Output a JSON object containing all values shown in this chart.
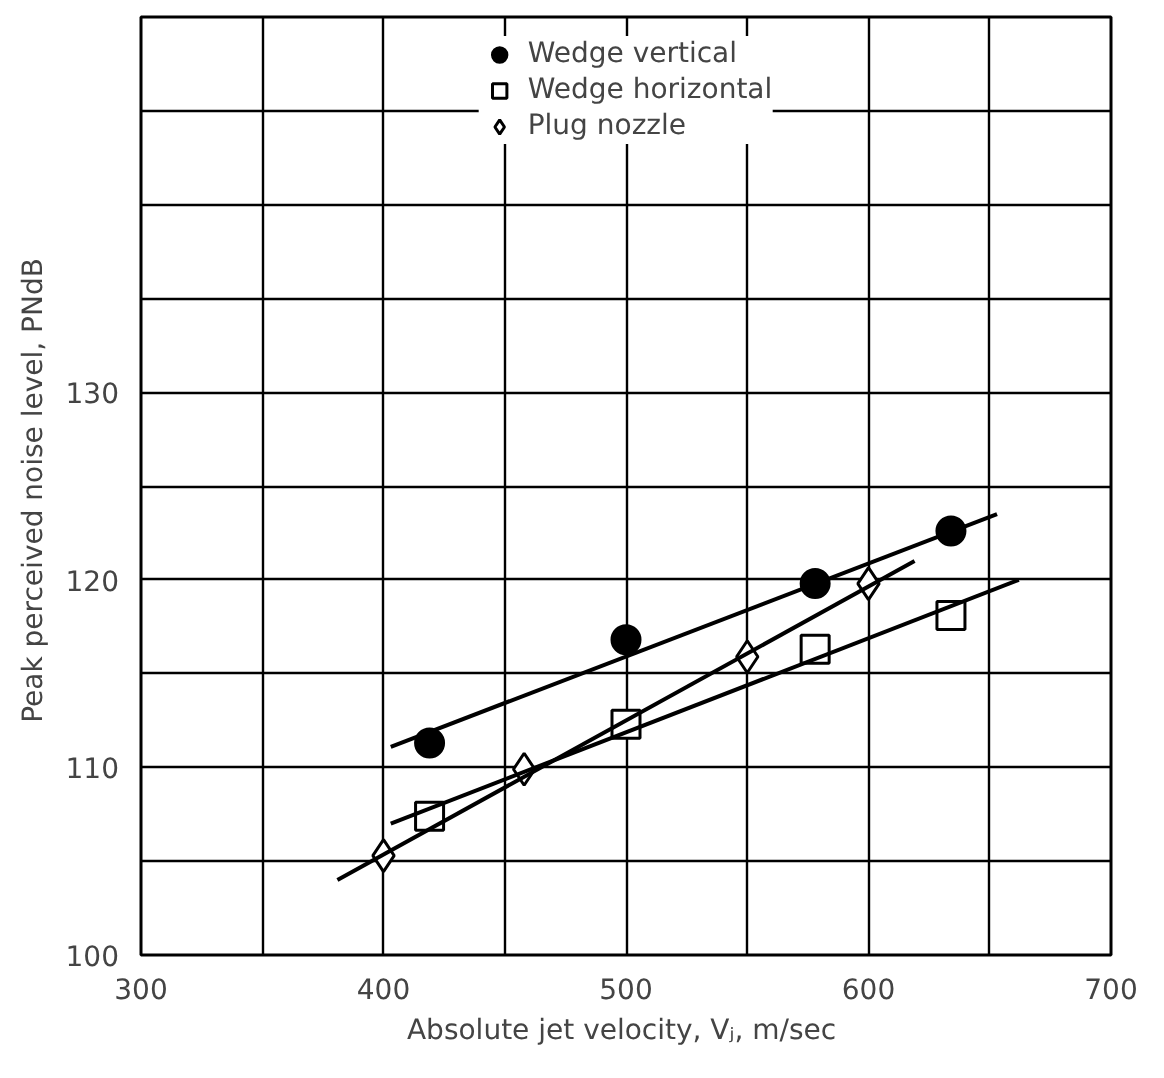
{
  "chart_data": {
    "type": "scatter",
    "xlabel": "Absolute jet velocity, Vⱼ,  m/sec",
    "ylabel": "Peak perceived noise level,  PNdB",
    "xlim": [
      300,
      700
    ],
    "ylim": [
      100,
      150
    ],
    "xticks": [
      300,
      {
        "value": 350,
        "label": null
      },
      400,
      {
        "value": 450,
        "label": null
      },
      500,
      {
        "value": 550,
        "label": null
      },
      600,
      {
        "value": 650,
        "label": null
      },
      700
    ],
    "yticks": [
      100,
      {
        "value": 105,
        "label": null
      },
      110,
      {
        "value": 115,
        "label": null
      },
      120,
      {
        "value": 125,
        "label": null
      },
      130,
      {
        "value": 135,
        "label": null
      },
      {
        "value": 140,
        "label": null
      },
      {
        "value": 145,
        "label": null
      },
      {
        "value": 150,
        "label": null
      }
    ],
    "grid": true,
    "legend": "top",
    "series": [
      {
        "name": "Wedge vertical",
        "color": "#000000",
        "marker": "circle",
        "x": [
          419,
          500,
          578,
          634
        ],
        "values": [
          111.3,
          116.8,
          119.8,
          122.6
        ]
      },
      {
        "name": "Wedge horizontal",
        "color": "#000000",
        "marker": "square",
        "x": [
          419,
          500,
          578,
          634
        ],
        "values": [
          107.4,
          112.3,
          116.3,
          118.1
        ]
      },
      {
        "name": "Plug nozzle",
        "color": "#000000",
        "marker": "diamond",
        "x": [
          400,
          458,
          550,
          600
        ],
        "values": [
          105.3,
          109.9,
          115.9,
          119.8
        ]
      },
      {
        "type": "line",
        "color": "#000000",
        "x": [
          403,
          653
        ],
        "values": [
          111.1,
          123.5
        ]
      },
      {
        "type": "line",
        "color": "#000000",
        "x": [
          403,
          662
        ],
        "values": [
          107.0,
          120.0
        ]
      },
      {
        "type": "line",
        "color": "#000000",
        "x": [
          381,
          619
        ],
        "values": [
          104.0,
          121.0
        ]
      }
    ]
  }
}
